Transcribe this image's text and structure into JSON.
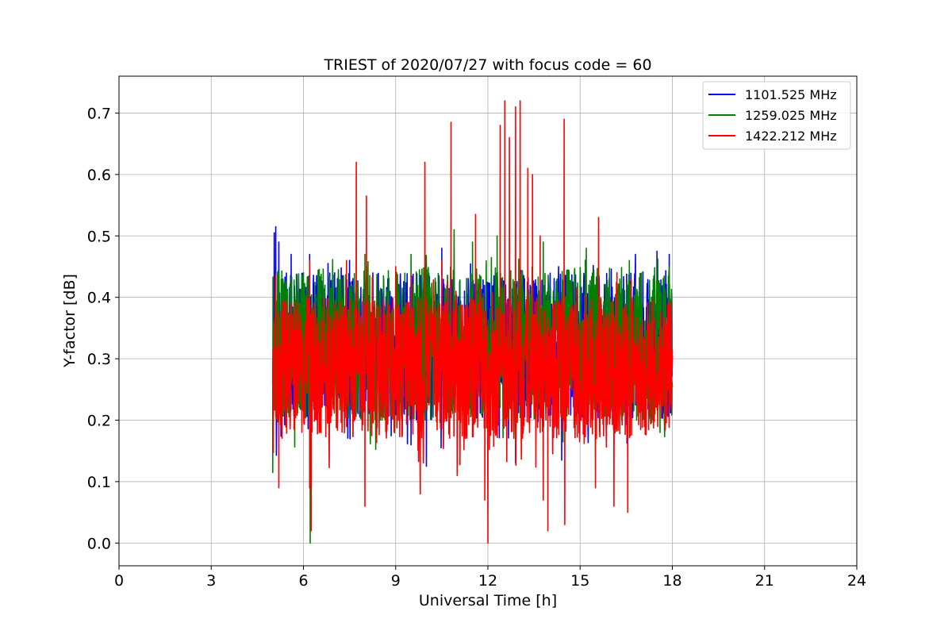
{
  "chart_data": {
    "type": "line",
    "title": "TRIEST of 2020/07/27 with focus code = 60",
    "xlabel": "Universal Time [h]",
    "ylabel": "Y-factor [dB]",
    "xlim": [
      0,
      24
    ],
    "ylim": [
      -0.037,
      0.76
    ],
    "xticks": [
      0,
      3,
      6,
      9,
      12,
      15,
      18,
      21,
      24
    ],
    "xtick_labels": [
      "0",
      "3",
      "6",
      "9",
      "12",
      "15",
      "18",
      "21",
      "24"
    ],
    "yticks": [
      0.0,
      0.1,
      0.2,
      0.3,
      0.4,
      0.5,
      0.6,
      0.7
    ],
    "ytick_labels": [
      "0.0",
      "0.1",
      "0.2",
      "0.3",
      "0.4",
      "0.5",
      "0.6",
      "0.7"
    ],
    "grid": true,
    "legend_position": "top-right",
    "x_range_of_data": [
      5.0,
      18.0
    ],
    "series": [
      {
        "name": "1101.525 MHz",
        "color": "#0000ff",
        "baseline": 0.3,
        "band_low": 0.2,
        "band_high": 0.44,
        "peaks": [
          [
            5.05,
            0.505
          ],
          [
            5.1,
            0.515
          ],
          [
            5.2,
            0.49
          ],
          [
            5.6,
            0.47
          ],
          [
            6.2,
            0.47
          ],
          [
            6.8,
            0.455
          ],
          [
            7.5,
            0.46
          ],
          [
            9.0,
            0.43
          ],
          [
            10.5,
            0.48
          ],
          [
            14.3,
            0.45
          ],
          [
            16.8,
            0.47
          ],
          [
            17.5,
            0.475
          ],
          [
            17.9,
            0.47
          ]
        ],
        "dips": [
          [
            5.0,
            0.2
          ],
          [
            9.5,
            0.16
          ],
          [
            10.0,
            0.125
          ],
          [
            11.0,
            0.15
          ],
          [
            12.9,
            0.13
          ],
          [
            14.4,
            0.135
          ],
          [
            15.0,
            0.2
          ]
        ]
      },
      {
        "name": "1259.025 MHz",
        "color": "#008000",
        "baseline": 0.31,
        "band_low": 0.2,
        "band_high": 0.45,
        "peaks": [
          [
            5.1,
            0.41
          ],
          [
            6.0,
            0.44
          ],
          [
            8.0,
            0.47
          ],
          [
            9.5,
            0.47
          ],
          [
            10.9,
            0.51
          ],
          [
            11.5,
            0.49
          ],
          [
            12.3,
            0.5
          ],
          [
            13.8,
            0.49
          ],
          [
            15.2,
            0.48
          ],
          [
            16.6,
            0.46
          ],
          [
            17.9,
            0.45
          ]
        ],
        "dips": [
          [
            5.0,
            0.115
          ],
          [
            6.22,
            0.0
          ],
          [
            8.5,
            0.2
          ],
          [
            12.9,
            0.16
          ],
          [
            17.6,
            0.18
          ]
        ]
      },
      {
        "name": "1422.212 MHz",
        "color": "#ff0000",
        "baseline": 0.28,
        "band_low": 0.17,
        "band_high": 0.4,
        "peaks": [
          [
            6.2,
            0.46
          ],
          [
            7.4,
            0.46
          ],
          [
            7.72,
            0.62
          ],
          [
            8.05,
            0.565
          ],
          [
            9.0,
            0.45
          ],
          [
            9.95,
            0.62
          ],
          [
            10.5,
            0.46
          ],
          [
            10.8,
            0.685
          ],
          [
            11.6,
            0.535
          ],
          [
            12.4,
            0.68
          ],
          [
            12.55,
            0.72
          ],
          [
            12.7,
            0.66
          ],
          [
            12.9,
            0.71
          ],
          [
            13.05,
            0.72
          ],
          [
            13.3,
            0.61
          ],
          [
            13.45,
            0.6
          ],
          [
            13.7,
            0.5
          ],
          [
            14.48,
            0.69
          ],
          [
            15.6,
            0.53
          ],
          [
            16.2,
            0.44
          ]
        ],
        "dips": [
          [
            5.2,
            0.09
          ],
          [
            6.2,
            0.09
          ],
          [
            6.25,
            0.02
          ],
          [
            8.0,
            0.06
          ],
          [
            9.8,
            0.08
          ],
          [
            11.0,
            0.11
          ],
          [
            11.9,
            0.07
          ],
          [
            12.0,
            0.0
          ],
          [
            13.8,
            0.07
          ],
          [
            13.95,
            0.02
          ],
          [
            14.5,
            0.03
          ],
          [
            15.5,
            0.09
          ],
          [
            16.1,
            0.06
          ],
          [
            16.55,
            0.05
          ]
        ]
      }
    ]
  }
}
